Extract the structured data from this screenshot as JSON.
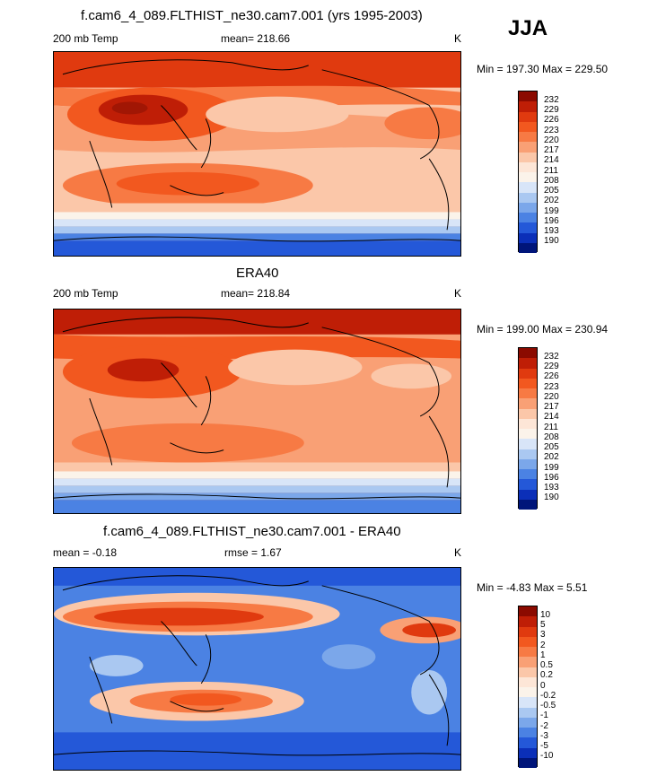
{
  "season": "JJA",
  "panels": [
    {
      "title": "f.cam6_4_089.FLTHIST_ne30.cam7.001 (yrs 1995-2003)",
      "left_label": "200 mb Temp",
      "center_label": "mean= 218.66",
      "units": "K",
      "minmax": "Min = 197.30 Max = 229.50",
      "legend_labels": [
        "232",
        "229",
        "226",
        "223",
        "220",
        "217",
        "214",
        "211",
        "208",
        "205",
        "202",
        "199",
        "196",
        "193",
        "190"
      ]
    },
    {
      "title": "ERA40",
      "left_label": "200 mb Temp",
      "center_label": "mean= 218.84",
      "units": "K",
      "minmax": "Min = 199.00 Max = 230.94",
      "legend_labels": [
        "232",
        "229",
        "226",
        "223",
        "220",
        "217",
        "214",
        "211",
        "208",
        "205",
        "202",
        "199",
        "196",
        "193",
        "190"
      ]
    },
    {
      "title": "f.cam6_4_089.FLTHIST_ne30.cam7.001 - ERA40",
      "left_label": "mean =  -0.18",
      "center_label": "rmse =   1.67",
      "units": "K",
      "minmax": "Min =  -4.83 Max =   5.51",
      "legend_labels": [
        "10",
        "5",
        "3",
        "2",
        "1",
        "0.5",
        "0.2",
        "0",
        "-0.2",
        "-0.5",
        "-1",
        "-2",
        "-3",
        "-5",
        "-10"
      ]
    }
  ],
  "colors": {
    "abs_scale": [
      "#8b0a00",
      "#bf1e06",
      "#e03a0f",
      "#f2581f",
      "#f77a44",
      "#f9a075",
      "#fbc7a9",
      "#fde6d7",
      "#fbf3ea",
      "#d8e5f8",
      "#aac8f1",
      "#7ba7ea",
      "#4b82e3",
      "#2458d8",
      "#0b2fb8",
      "#00157a"
    ],
    "diff_scale": [
      "#8b0a00",
      "#bf1e06",
      "#e03a0f",
      "#f2581f",
      "#f77a44",
      "#f9a075",
      "#fbc7a9",
      "#fde6d7",
      "#fbf3ea",
      "#d8e5f8",
      "#aac8f1",
      "#7ba7ea",
      "#4b82e3",
      "#2458d8",
      "#0b2fb8",
      "#00157a"
    ]
  }
}
